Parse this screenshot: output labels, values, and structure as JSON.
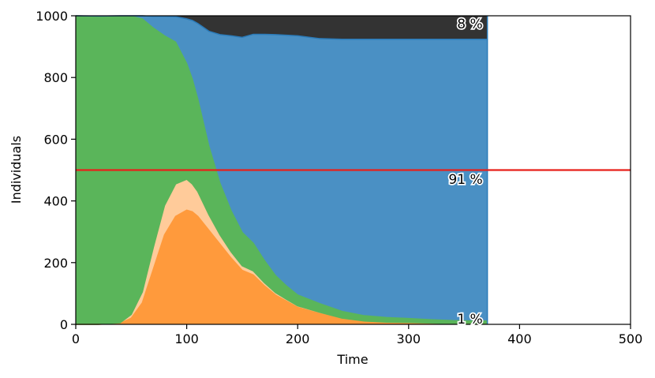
{
  "chart_data": {
    "type": "area",
    "xlabel": "Time",
    "ylabel": "Individuals",
    "xlim": [
      0,
      500
    ],
    "ylim": [
      0,
      1000
    ],
    "xticks": [
      0,
      100,
      200,
      300,
      400,
      500
    ],
    "yticks": [
      0,
      200,
      400,
      600,
      800,
      1000
    ],
    "grid": false,
    "t_end": 371,
    "threshold": 500,
    "colors": {
      "infected": "#ff9a3c",
      "exposed": "#ffcb9a",
      "susceptible": "#5ab55a",
      "recovered": "#4a90c4",
      "dead": "#333333",
      "threshold": "#e8201a"
    },
    "x": [
      0,
      20,
      40,
      50,
      60,
      70,
      80,
      90,
      100,
      105,
      110,
      120,
      130,
      140,
      150,
      160,
      170,
      180,
      190,
      200,
      220,
      240,
      260,
      280,
      300,
      320,
      340,
      360,
      371
    ],
    "series": [
      {
        "id": "infected",
        "values": [
          0,
          0,
          3,
          20,
          70,
          180,
          290,
          350,
          370,
          365,
          350,
          305,
          260,
          215,
          175,
          160,
          125,
          95,
          75,
          55,
          35,
          18,
          10,
          6,
          5,
          3,
          2,
          1,
          1
        ]
      },
      {
        "id": "exposed",
        "values": [
          0,
          0,
          2,
          12,
          35,
          70,
          95,
          105,
          100,
          90,
          80,
          50,
          30,
          20,
          15,
          13,
          10,
          8,
          6,
          5,
          4,
          2,
          1,
          1,
          1,
          1,
          0,
          0,
          0
        ]
      },
      {
        "id": "susceptible",
        "values": [
          1000,
          998,
          993,
          966,
          885,
          710,
          550,
          460,
          375,
          340,
          300,
          222,
          167,
          133,
          108,
          90,
          72,
          55,
          43,
          35,
          28,
          22,
          17,
          15,
          13,
          11,
          10,
          10,
          10
        ]
      },
      {
        "id": "recovered",
        "values": [
          0,
          1,
          2,
          2,
          10,
          38,
          63,
          82,
          145,
          190,
          245,
          373,
          482,
          567,
          632,
          677,
          733,
          781,
          813,
          840,
          859,
          882,
          896,
          902,
          905,
          909,
          912,
          913,
          913
        ]
      },
      {
        "id": "dead",
        "values": [
          0,
          1,
          0,
          0,
          0,
          2,
          2,
          3,
          10,
          15,
          25,
          50,
          61,
          65,
          70,
          60,
          60,
          61,
          63,
          65,
          74,
          76,
          76,
          76,
          76,
          76,
          76,
          76,
          76
        ]
      }
    ],
    "annotations": [
      {
        "text": "8 %",
        "x": 371,
        "y": 975
      },
      {
        "text": "91 %",
        "x": 371,
        "y": 470
      },
      {
        "text": "1 %",
        "x": 371,
        "y": 18
      }
    ]
  }
}
